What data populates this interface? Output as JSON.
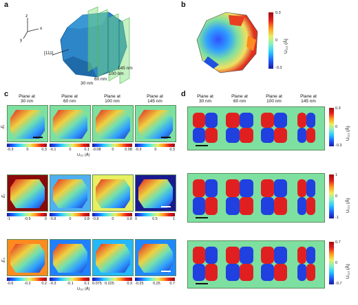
{
  "panels": {
    "a": {
      "label": "a",
      "axes": {
        "z": "z",
        "x": "x",
        "y": "y"
      },
      "direction": "[111]",
      "plane_labels": [
        "30 nm",
        "60 nm",
        "100 nm",
        "145 nm"
      ],
      "colors": {
        "crystal": "#2d86c8",
        "plane": "#7fe07a"
      }
    },
    "b": {
      "label": "b",
      "colorbar": {
        "max": "0.3",
        "mid": "0",
        "min": "-0.3",
        "title": "U₁₁₁ (Å)"
      }
    },
    "c": {
      "label": "c",
      "column_headers": [
        "Plane at\n30 nm",
        "Plane at\n60 nm",
        "Plane at\n100 nm",
        "Plane at\n145 nm"
      ],
      "rows": [
        {
          "label": "Eᵢ",
          "ticks": [
            [
              "-0.3",
              "0",
              "0.3"
            ],
            [
              "-0.1",
              "0",
              "0.1"
            ],
            [
              "-0.08",
              "0",
              "0.08"
            ],
            [
              "-0.3",
              "0",
              "0.3"
            ]
          ],
          "axis_label": "U₁₁₁ (Å)"
        },
        {
          "label": "Eⱼ",
          "ticks": [
            [
              "-1",
              "-0.5",
              "0"
            ],
            [
              "-0.8",
              "0",
              "0.8"
            ],
            [
              "-0.8",
              "0",
              "0.8"
            ],
            [
              "0",
              "0.5",
              "1"
            ]
          ],
          "axis_label": ""
        },
        {
          "label": "Eₖ",
          "ticks": [
            [
              "-0.6",
              "-0.2",
              "0.2"
            ],
            [
              "-0.3",
              "-0.1",
              "0.1"
            ],
            [
              "0.075",
              "0.3"
            ],
            [
              "-0.25",
              "0.25",
              "0.7"
            ]
          ],
          "extra_tick": "0.225",
          "axis_label": "U₁₁₁ (Å)"
        }
      ]
    },
    "d": {
      "label": "d",
      "column_headers": [
        "Plane at\n30 nm",
        "Plane at\n60 nm",
        "Plane at\n100 nm",
        "Plane at\n145 nm"
      ],
      "colorbars": [
        {
          "max": "0.3",
          "mid": "0",
          "min": "-0.3",
          "title": "U₁₁₁ (Å)"
        },
        {
          "max": "1",
          "mid": "0",
          "min": "-1",
          "title": "U₁₁₁ (Å)"
        },
        {
          "max": "0.7",
          "mid": "0",
          "min": "-0.7",
          "title": "U₁₁₁ (Å)"
        }
      ]
    }
  }
}
